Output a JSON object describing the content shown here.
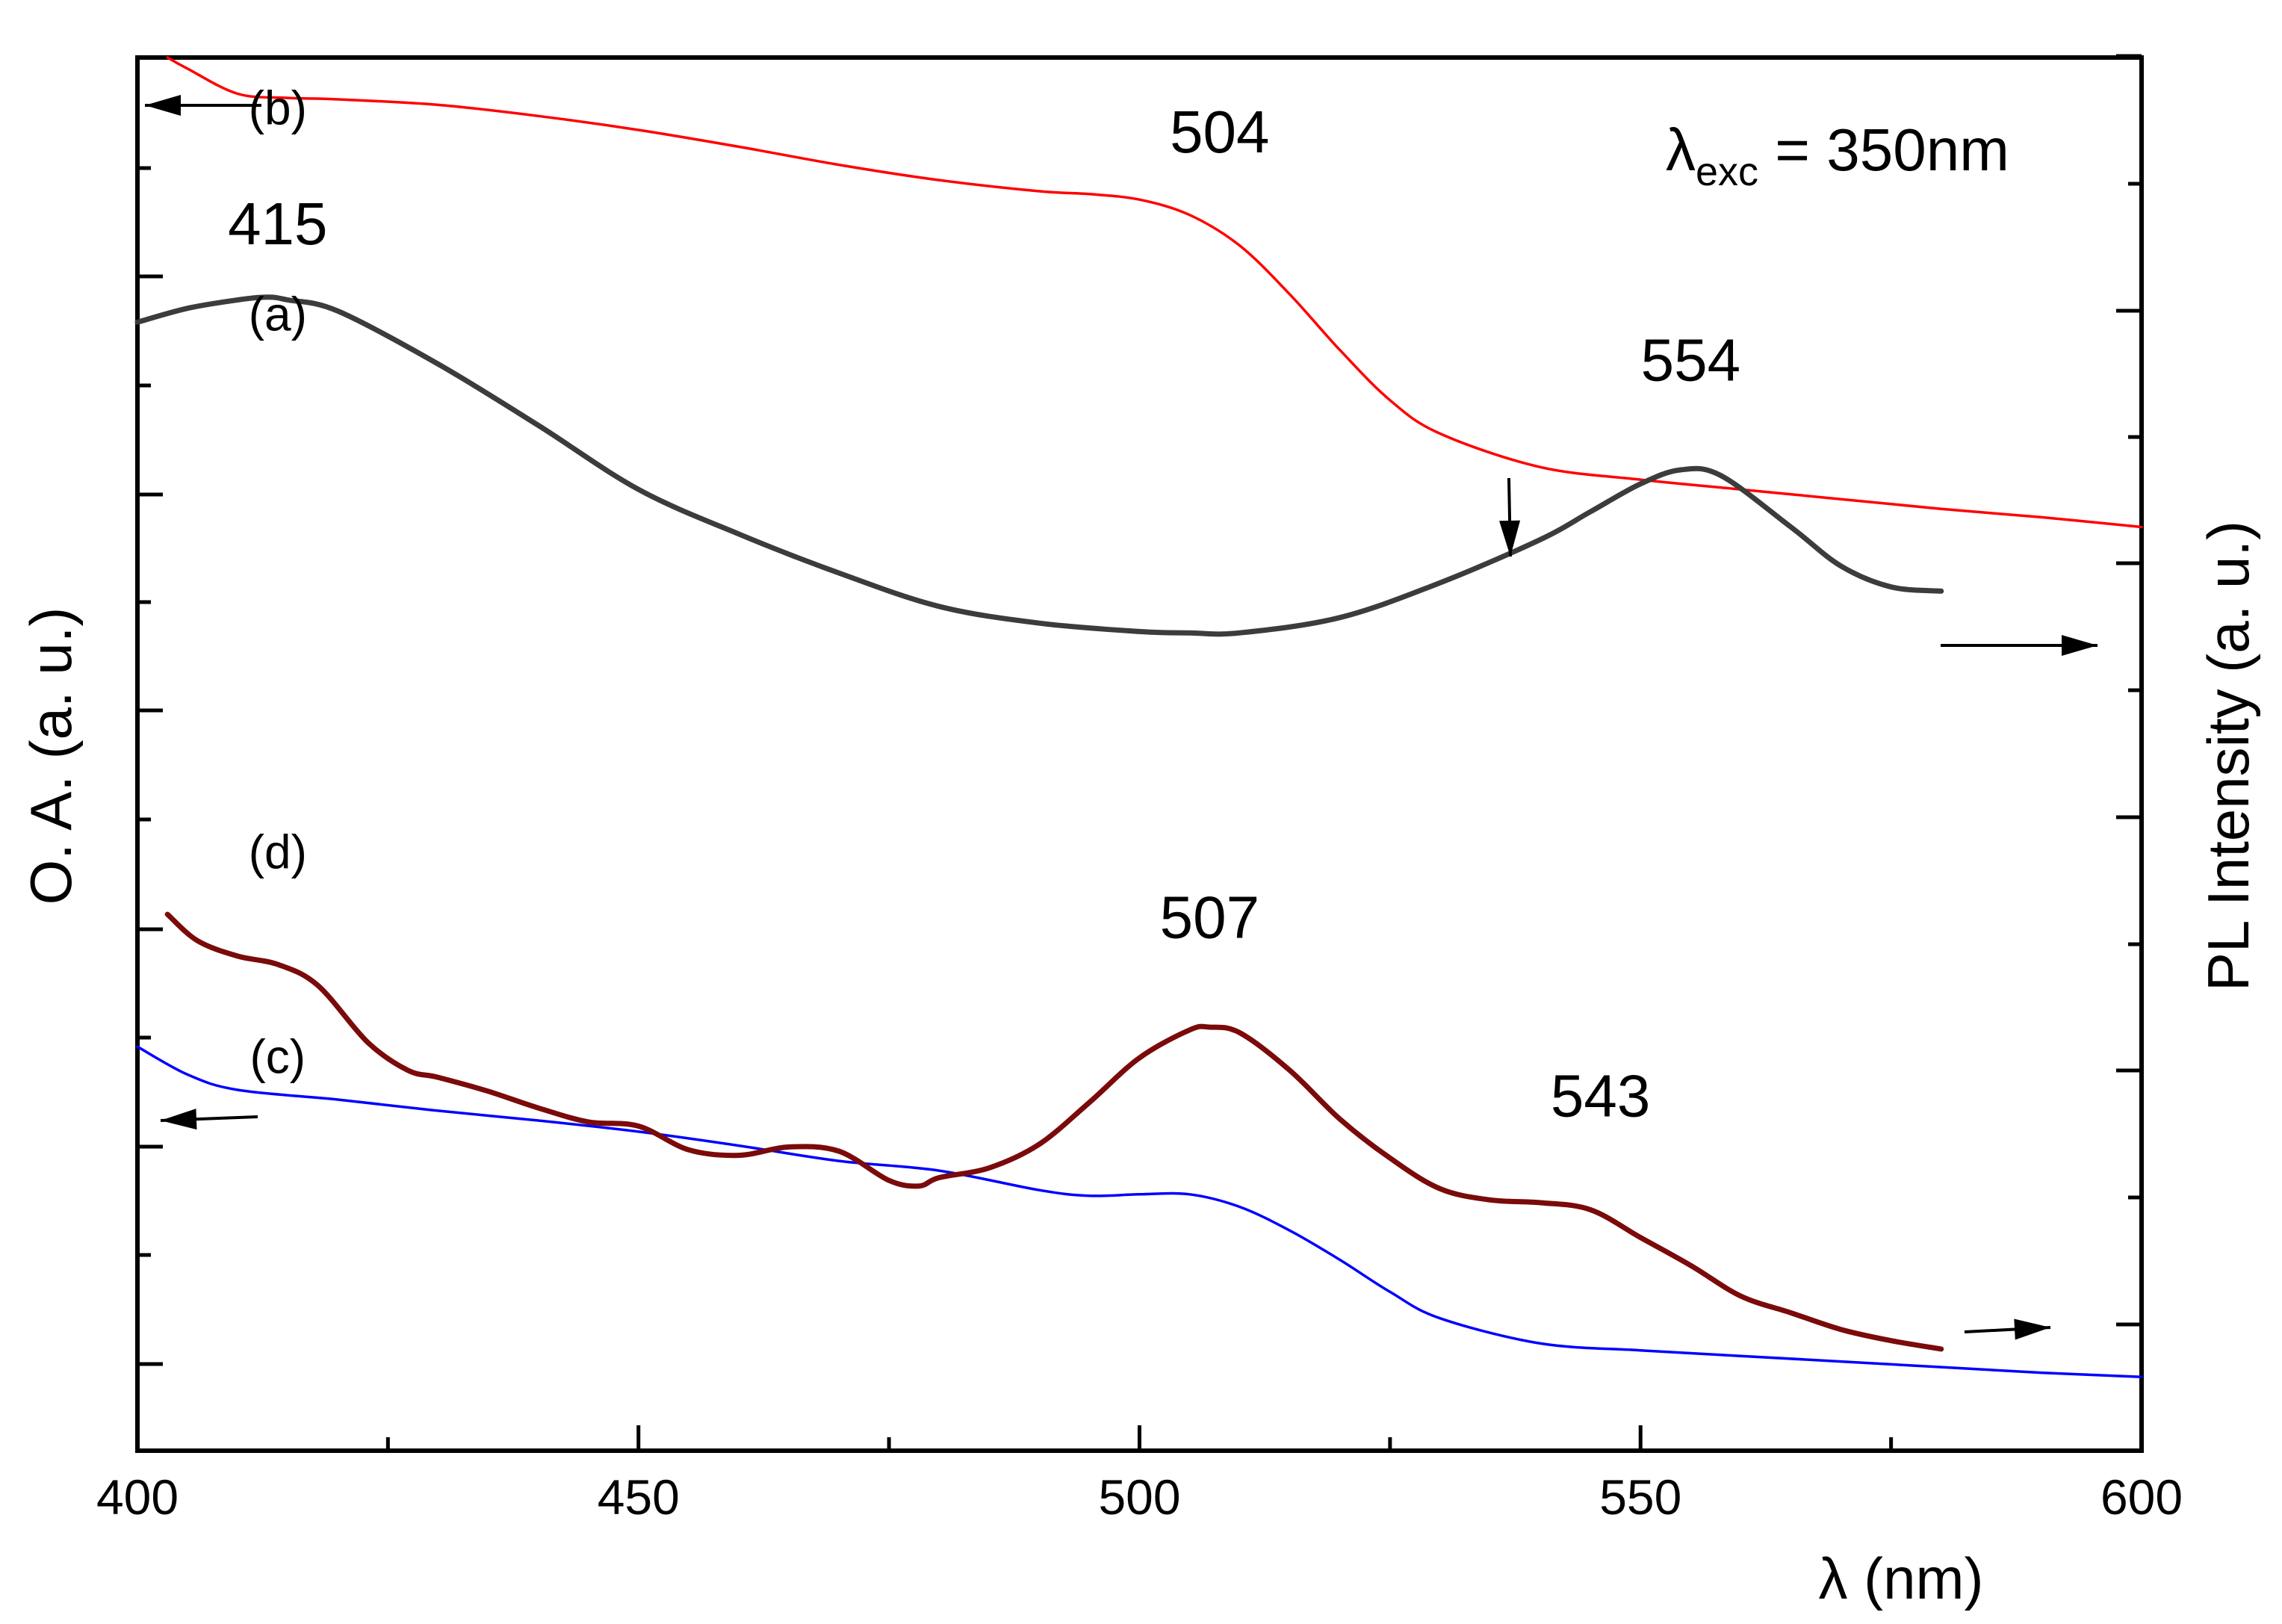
{
  "chart_data": {
    "type": "line",
    "title": "",
    "xlabel": "λ (nm)",
    "ylabel_left": "O. A. (a. u.)",
    "ylabel_right": "PL Intensity (a. u.)",
    "xlim": [
      400,
      600
    ],
    "x_ticks": [
      400,
      450,
      500,
      550,
      600
    ],
    "x_tick_labels": [
      "400",
      "450",
      "500",
      "550",
      "600"
    ],
    "ylim": [
      0,
      100
    ],
    "grid": false,
    "annotation": {
      "lambda": "λ",
      "subscript": "exc",
      "rest": " = 350nm"
    },
    "series": [
      {
        "name": "(b)",
        "axis": "left",
        "color": "#ff0000",
        "x": [
          403,
          405,
          410,
          415,
          420,
          430,
          440,
          450,
          460,
          470,
          480,
          490,
          495,
          500,
          505,
          510,
          515,
          520,
          525,
          530,
          540,
          550,
          560,
          570,
          580,
          590,
          600
        ],
        "y": [
          100,
          99.2,
          97.4,
          97.1,
          97.0,
          96.6,
          95.8,
          94.8,
          93.6,
          92.3,
          91.2,
          90.4,
          90.2,
          89.8,
          88.7,
          86.5,
          83.0,
          79.0,
          75.4,
          73.0,
          70.6,
          69.7,
          69.0,
          68.3,
          67.6,
          67.0,
          66.3
        ]
      },
      {
        "name": "(a)",
        "axis": "right",
        "color": "#3c3c3c",
        "x": [
          400,
          405,
          410,
          413,
          415,
          420,
          430,
          440,
          450,
          460,
          470,
          480,
          490,
          500,
          505,
          510,
          520,
          530,
          540,
          545,
          550,
          554,
          558,
          565,
          570,
          575,
          580
        ],
        "y": [
          81.0,
          82.0,
          82.6,
          82.8,
          82.6,
          81.8,
          78.0,
          73.6,
          69.0,
          65.8,
          63.0,
          60.6,
          59.4,
          58.8,
          58.7,
          58.7,
          59.8,
          62.3,
          65.4,
          67.4,
          69.4,
          70.4,
          70.0,
          66.3,
          63.5,
          62.0,
          61.7
        ]
      },
      {
        "name": "(c)",
        "axis": "left",
        "color": "#0000ff",
        "x": [
          400,
          405,
          410,
          420,
          430,
          440,
          450,
          460,
          470,
          480,
          490,
          495,
          500,
          505,
          510,
          515,
          520,
          525,
          530,
          540,
          550,
          560,
          570,
          580,
          590,
          600
        ],
        "y": [
          29.0,
          27.0,
          25.9,
          25.2,
          24.4,
          23.7,
          22.9,
          21.9,
          20.8,
          20.1,
          18.7,
          18.3,
          18.4,
          18.4,
          17.5,
          15.8,
          13.7,
          11.4,
          9.5,
          7.7,
          7.2,
          6.8,
          6.4,
          6.0,
          5.6,
          5.3
        ]
      },
      {
        "name": "(d)",
        "axis": "right",
        "color": "#7b0a0a",
        "x": [
          403,
          406,
          410,
          414,
          418,
          423,
          427,
          430,
          435,
          440,
          445,
          450,
          455,
          460,
          465,
          470,
          475,
          478,
          480,
          485,
          490,
          495,
          500,
          505,
          507,
          510,
          515,
          520,
          525,
          530,
          535,
          540,
          545,
          550,
          555,
          560,
          565,
          570,
          575,
          580
        ],
        "y": [
          38.5,
          36.6,
          35.5,
          34.9,
          33.4,
          29.3,
          27.3,
          26.8,
          25.8,
          24.6,
          23.6,
          23.3,
          21.6,
          21.2,
          21.8,
          21.5,
          19.4,
          19.0,
          19.6,
          20.3,
          22.0,
          25.0,
          28.2,
          30.2,
          30.4,
          30.0,
          27.3,
          23.8,
          21.0,
          18.8,
          18.0,
          17.8,
          17.3,
          15.3,
          13.3,
          11.1,
          9.9,
          8.7,
          7.9,
          7.3
        ]
      }
    ],
    "peak_labels": [
      {
        "text": "415",
        "x": 414,
        "y": 86.6,
        "color": "#000000"
      },
      {
        "text": "504",
        "x": 508,
        "y": 93.2,
        "color": "#7f7f7f"
      },
      {
        "text": "554",
        "x": 555,
        "y": 76.8,
        "color": "#000000"
      },
      {
        "text": "507",
        "x": 507,
        "y": 36.8,
        "color": "#000000"
      },
      {
        "text": "543",
        "x": 546,
        "y": 24.0,
        "color": "#000000"
      }
    ],
    "curve_labels": [
      {
        "text": "(b)",
        "x": 414,
        "y": 95.2
      },
      {
        "text": "(a)",
        "x": 414,
        "y": 80.4
      },
      {
        "text": "(d)",
        "x": 414,
        "y": 41.8
      },
      {
        "text": "(c)",
        "x": 414,
        "y": 27.1
      }
    ]
  }
}
